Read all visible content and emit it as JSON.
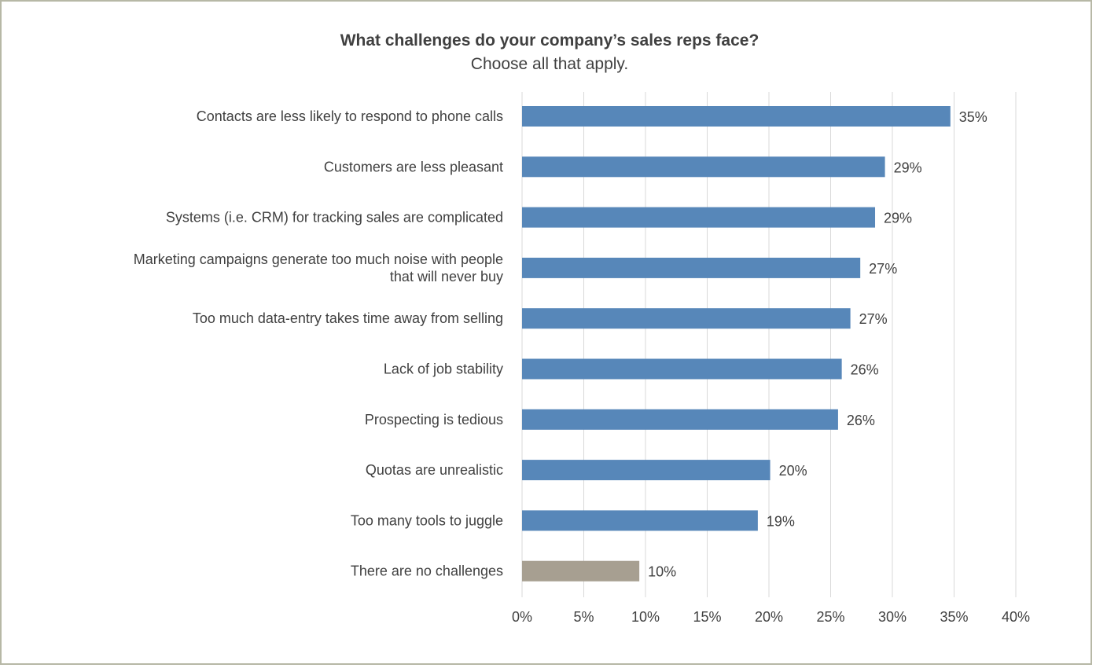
{
  "chart_data": {
    "type": "bar",
    "orientation": "horizontal",
    "title": "What challenges do your company’s sales reps face?",
    "subtitle": "Choose all that apply.",
    "xlim": [
      0,
      40
    ],
    "x_ticks": [
      "0%",
      "5%",
      "10%",
      "15%",
      "20%",
      "25%",
      "30%",
      "35%",
      "40%"
    ],
    "grid": true,
    "colors": {
      "primary": "#5787b9",
      "highlight": "#a79f91",
      "grid": "#d9d9d9",
      "frame": "#b7b8a6",
      "text": "#404040"
    },
    "categories": [
      [
        "Contacts are less likely to respond to phone calls"
      ],
      [
        "Customers are less pleasant"
      ],
      [
        "Systems (i.e. CRM) for tracking sales are complicated"
      ],
      [
        "Marketing campaigns generate too much noise with people",
        "that will never buy"
      ],
      [
        "Too much data-entry takes time away from selling"
      ],
      [
        "Lack of job stability"
      ],
      [
        "Prospecting is tedious"
      ],
      [
        "Quotas are unrealistic"
      ],
      [
        "Too many tools to juggle"
      ],
      [
        "There are no challenges"
      ]
    ],
    "values": [
      34.7,
      29.4,
      28.6,
      27.4,
      26.6,
      25.9,
      25.6,
      20.1,
      19.1,
      9.5
    ],
    "value_labels": [
      "35%",
      "29%",
      "29%",
      "27%",
      "27%",
      "26%",
      "26%",
      "20%",
      "19%",
      "10%"
    ],
    "highlight_index": 9
  }
}
